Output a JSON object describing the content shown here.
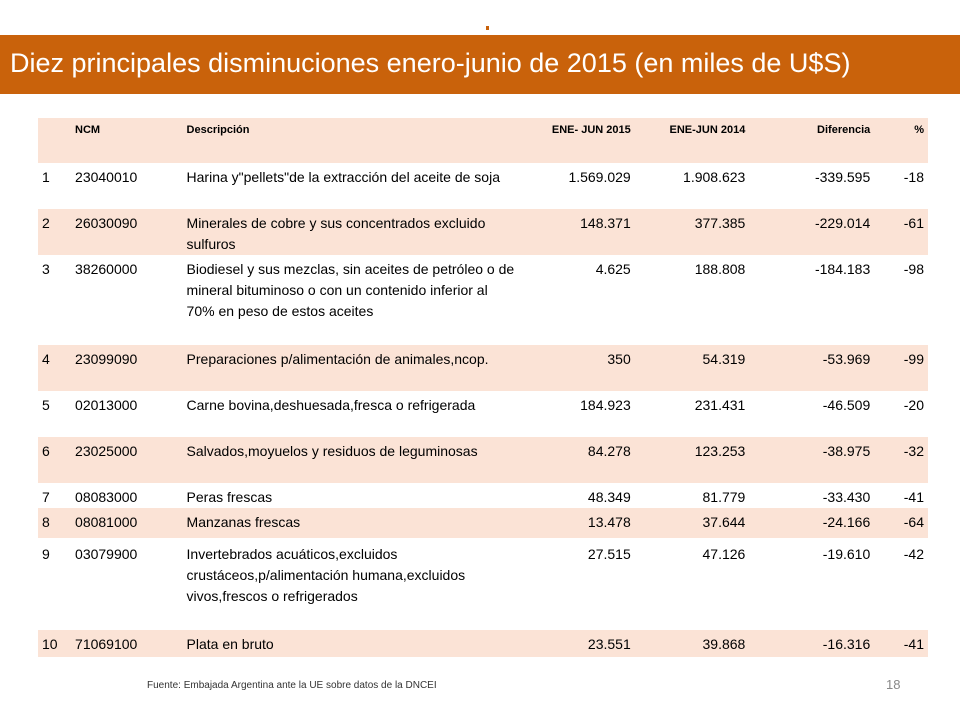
{
  "slide": {
    "title": "Diez principales disminuciones enero-junio de 2015 (en miles de U$S)",
    "source": "Fuente: Embajada  Argentina ante la UE sobre datos de la DNCEI",
    "page_number": "18",
    "accent_color": "#c9620b",
    "row_highlight_color": "#fbe3d6"
  },
  "table": {
    "headers": {
      "num": "",
      "ncm": "NCM",
      "desc": "Descripción",
      "v2015": "ENE- JUN 2015",
      "v2014": "ENE-JUN 2014",
      "diff": "Diferencia",
      "pct": "%"
    },
    "rows": [
      {
        "num": "1",
        "ncm": "23040010",
        "desc": "Harina y\"pellets\"de la extracción del aceite de soja",
        "v2015": "1.569.029",
        "v2014": "1.908.623",
        "diff": "-339.595",
        "pct": "-18"
      },
      {
        "num": "2",
        "ncm": "26030090",
        "desc": "Minerales de cobre y sus concentrados excluido sulfuros",
        "v2015": "148.371",
        "v2014": "377.385",
        "diff": "-229.014",
        "pct": "-61"
      },
      {
        "num": "3",
        "ncm": "38260000",
        "desc": "Biodiesel y sus mezclas, sin aceites de petróleo o de mineral bituminoso o con un contenido inferior al 70% en peso de estos aceites",
        "v2015": "4.625",
        "v2014": "188.808",
        "diff": "-184.183",
        "pct": "-98"
      },
      {
        "num": "4",
        "ncm": "23099090",
        "desc": "Preparaciones p/alimentación de animales,ncop.",
        "v2015": "350",
        "v2014": "54.319",
        "diff": "-53.969",
        "pct": "-99"
      },
      {
        "num": "5",
        "ncm": "02013000",
        "desc": "Carne bovina,deshuesada,fresca o refrigerada",
        "v2015": "184.923",
        "v2014": "231.431",
        "diff": "-46.509",
        "pct": "-20"
      },
      {
        "num": "6",
        "ncm": "23025000",
        "desc": "Salvados,moyuelos y residuos de leguminosas",
        "v2015": "84.278",
        "v2014": "123.253",
        "diff": "-38.975",
        "pct": "-32"
      },
      {
        "num": "7",
        "ncm": "08083000",
        "desc": "Peras frescas",
        "v2015": "48.349",
        "v2014": "81.779",
        "diff": "-33.430",
        "pct": "-41"
      },
      {
        "num": "8",
        "ncm": "08081000",
        "desc": "Manzanas frescas",
        "v2015": "13.478",
        "v2014": "37.644",
        "diff": "-24.166",
        "pct": "-64"
      },
      {
        "num": "9",
        "ncm": "03079900",
        "desc": "Invertebrados acuáticos,excluidos crustáceos,p/alimentación humana,excluidos vivos,frescos o refrigerados",
        "v2015": "27.515",
        "v2014": "47.126",
        "diff": "-19.610",
        "pct": "-42"
      },
      {
        "num": "10",
        "ncm": "71069100",
        "desc": "Plata en bruto",
        "v2015": "23.551",
        "v2014": "39.868",
        "diff": "-16.316",
        "pct": "-41"
      }
    ]
  }
}
